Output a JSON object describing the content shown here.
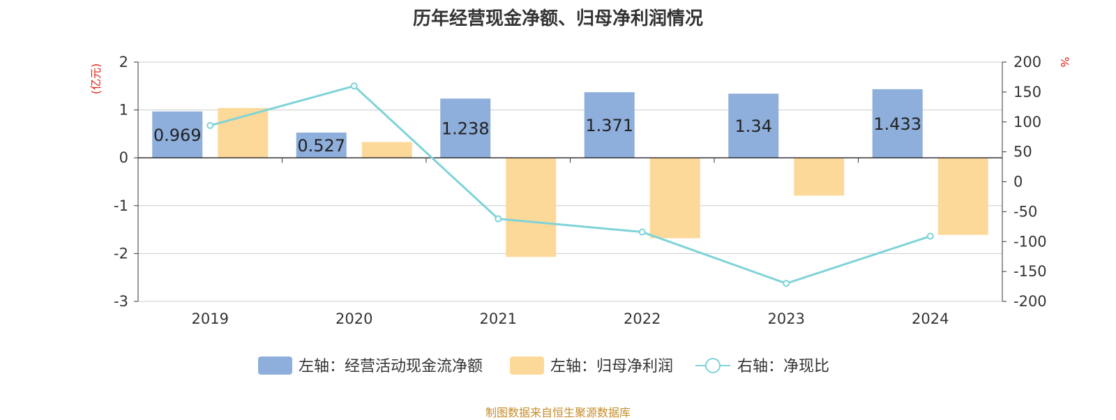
{
  "title": "历年经营现金净额、归母净利润情况",
  "source": "制图数据来自恒生聚源数据库",
  "chart_data": {
    "type": "bar",
    "title": "历年经营现金净额、归母净利润情况",
    "categories": [
      "2019",
      "2020",
      "2021",
      "2022",
      "2023",
      "2024"
    ],
    "left_axis": {
      "unit": "(亿元)",
      "ylim": [
        -3,
        2
      ],
      "ticks": [
        2,
        1,
        0,
        -1,
        -2,
        -3
      ]
    },
    "right_axis": {
      "unit": "%",
      "ylim": [
        -200,
        200
      ],
      "ticks": [
        200,
        150,
        100,
        50,
        0,
        -50,
        -100,
        -150,
        -200
      ]
    },
    "series": [
      {
        "name": "左轴：经营活动现金流净额",
        "type": "bar",
        "axis": "left",
        "color": "#8eaedb",
        "values": [
          0.969,
          0.527,
          1.238,
          1.371,
          1.34,
          1.433
        ],
        "labels": [
          "0.969",
          "0.527",
          "1.238",
          "1.371",
          "1.34",
          "1.433"
        ]
      },
      {
        "name": "左轴：归母净利润",
        "type": "bar",
        "axis": "left",
        "color": "#fdd999",
        "values": [
          1.04,
          0.33,
          -2.07,
          -1.68,
          -0.79,
          -1.61
        ]
      },
      {
        "name": "右轴：净现比",
        "type": "line",
        "axis": "right",
        "color": "#7fd3d8",
        "values": [
          94,
          160,
          -62,
          -84,
          -170,
          -91
        ]
      }
    ],
    "grid": true,
    "legend": "bottom"
  }
}
